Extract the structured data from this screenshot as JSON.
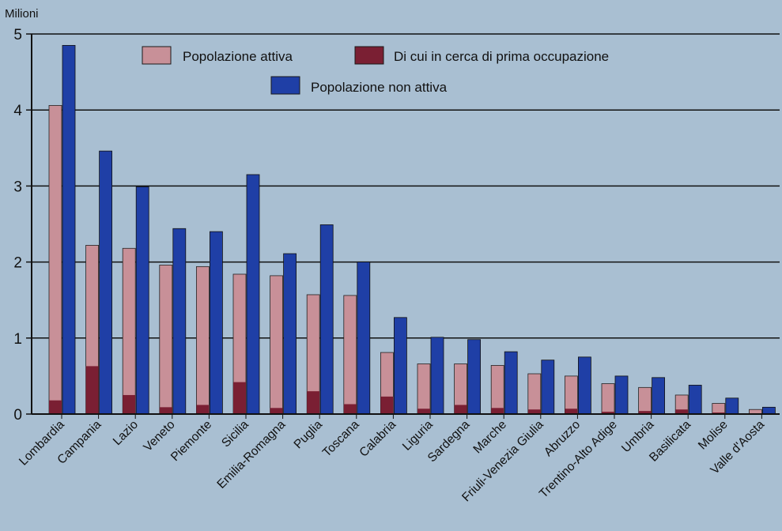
{
  "chart_data": {
    "type": "bar",
    "ylabel": "Milioni",
    "ylim": [
      0,
      5
    ],
    "yticks": [
      0,
      1,
      2,
      3,
      4,
      5
    ],
    "grid": true,
    "legend_position": "top",
    "categories": [
      "Lombardia",
      "Campania",
      "Lazio",
      "Veneto",
      "Piemonte",
      "Sicilia",
      "Emilia-Romagna",
      "Puglia",
      "Toscana",
      "Calabria",
      "Liguria",
      "Sardegna",
      "Marche",
      "Friuli-Venezia Giulia",
      "Abruzzo",
      "Trentino-Alto Adige",
      "Umbria",
      "Basilicata",
      "Molise",
      "Valle d'Aosta"
    ],
    "series": [
      {
        "name": "Popolazione attiva",
        "color": "#c89098",
        "values": [
          4.06,
          2.22,
          2.18,
          1.96,
          1.94,
          1.84,
          1.82,
          1.57,
          1.56,
          0.81,
          0.66,
          0.66,
          0.64,
          0.53,
          0.5,
          0.4,
          0.35,
          0.25,
          0.14,
          0.06
        ]
      },
      {
        "name": "Di cui in cerca di prima occupazione",
        "color": "#7a1f33",
        "values": [
          0.18,
          0.63,
          0.25,
          0.09,
          0.12,
          0.42,
          0.08,
          0.3,
          0.13,
          0.23,
          0.07,
          0.12,
          0.08,
          0.06,
          0.07,
          0.03,
          0.04,
          0.06,
          0.02,
          0.01
        ]
      },
      {
        "name": "Popolazione non attiva",
        "color": "#1f3fa6",
        "values": [
          4.85,
          3.46,
          2.99,
          2.44,
          2.4,
          3.15,
          2.11,
          2.49,
          2.0,
          1.27,
          1.01,
          0.98,
          0.82,
          0.71,
          0.75,
          0.5,
          0.48,
          0.38,
          0.21,
          0.09
        ]
      }
    ]
  }
}
